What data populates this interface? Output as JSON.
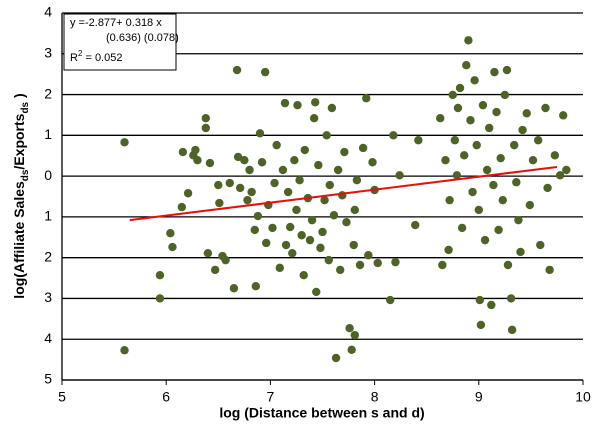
{
  "chart_data": {
    "type": "scatter",
    "xlabel": "log (Distance between s and d)",
    "ylabel_parts": [
      "log(Affiliate Sales",
      "ds",
      "/Exports",
      "ds",
      " )"
    ],
    "annotation": {
      "lines": [
        "y =-2.877+ 0.318 x",
        "(0.636) (0.078)"
      ],
      "r2": [
        "R",
        "2",
        " = 0.052"
      ]
    },
    "xlim": [
      5,
      10
    ],
    "xticks": [
      5,
      6,
      7,
      8,
      9,
      10
    ],
    "ylim": [
      -5,
      4
    ],
    "yticks": [
      4,
      3,
      2,
      1,
      0,
      {
        "value": -1,
        "label": "1"
      },
      {
        "value": -2,
        "label": "2"
      },
      {
        "value": -3,
        "label": "3"
      },
      {
        "value": -4,
        "label": "4"
      },
      {
        "value": -5,
        "label": "5"
      }
    ],
    "grid": true,
    "color": "#4f6228",
    "x": [
      5.6,
      5.6,
      5.94,
      5.94,
      6.04,
      6.06,
      6.15,
      6.16,
      6.21,
      6.26,
      6.28,
      6.3,
      6.38,
      6.38,
      6.4,
      6.42,
      6.47,
      6.51,
      6.5,
      6.54,
      6.57,
      6.61,
      6.65,
      6.68,
      6.69,
      6.71,
      6.75,
      6.78,
      6.8,
      6.82,
      6.85,
      6.86,
      6.88,
      6.9,
      6.92,
      6.95,
      6.96,
      6.98,
      7.02,
      7.04,
      7.06,
      7.09,
      7.12,
      7.14,
      7.15,
      7.17,
      7.19,
      7.21,
      7.23,
      7.25,
      7.26,
      7.28,
      7.3,
      7.32,
      7.33,
      7.36,
      7.38,
      7.4,
      7.42,
      7.43,
      7.44,
      7.46,
      7.48,
      7.5,
      7.52,
      7.54,
      7.56,
      7.57,
      7.59,
      7.61,
      7.63,
      7.65,
      7.67,
      7.69,
      7.71,
      7.73,
      7.76,
      7.78,
      7.81,
      7.8,
      7.81,
      7.83,
      7.86,
      7.89,
      7.92,
      7.94,
      7.98,
      8.0,
      8.03,
      8.15,
      8.18,
      8.2,
      8.24,
      8.39,
      8.42,
      8.63,
      8.65,
      8.68,
      8.71,
      8.72,
      8.75,
      8.77,
      8.79,
      8.8,
      8.82,
      8.84,
      8.86,
      8.88,
      8.9,
      8.92,
      8.94,
      8.96,
      8.98,
      9.0,
      9.01,
      9.02,
      9.04,
      9.06,
      9.08,
      9.1,
      9.12,
      9.14,
      9.15,
      9.17,
      9.19,
      9.21,
      9.23,
      9.25,
      9.27,
      9.28,
      9.31,
      9.32,
      9.34,
      9.36,
      9.38,
      9.4,
      9.42,
      9.46,
      9.49,
      9.52,
      9.57,
      9.59,
      9.64,
      9.66,
      9.68,
      9.73,
      9.78,
      9.81,
      9.84
    ],
    "values": [
      0.83,
      -4.27,
      -2.43,
      -3.0,
      -1.4,
      -1.74,
      -0.76,
      0.59,
      -0.42,
      0.51,
      0.64,
      0.39,
      1.42,
      1.18,
      -1.89,
      0.32,
      -2.3,
      -0.66,
      -0.22,
      -1.96,
      -2.06,
      -0.17,
      -2.75,
      2.6,
      0.47,
      -0.29,
      0.39,
      -0.59,
      0.15,
      -0.39,
      -1.32,
      -2.7,
      -0.98,
      1.05,
      0.34,
      2.55,
      -1.64,
      -0.71,
      -1.27,
      -0.17,
      0.76,
      -2.25,
      0.15,
      1.79,
      -1.69,
      -0.39,
      -1.25,
      -1.89,
      0.39,
      -0.83,
      1.74,
      -0.1,
      -1.45,
      -2.43,
      0.64,
      -0.54,
      -1.57,
      -1.08,
      1.42,
      1.81,
      -2.84,
      0.27,
      -1.76,
      -1.37,
      -0.59,
      1.0,
      -2.06,
      -0.22,
      1.67,
      -0.96,
      -4.46,
      0.15,
      -2.3,
      -0.47,
      0.59,
      -1.13,
      -3.73,
      -4.26,
      -3.9,
      -1.69,
      -0.83,
      -0.1,
      -2.18,
      0.69,
      1.91,
      -1.94,
      0.34,
      -0.34,
      -2.13,
      -3.04,
      1.0,
      -2.11,
      0.02,
      -1.2,
      0.88,
      1.42,
      -2.18,
      0.39,
      -1.81,
      -0.59,
      1.99,
      0.88,
      0.02,
      1.67,
      2.16,
      -1.27,
      0.51,
      2.72,
      3.33,
      1.37,
      -0.39,
      2.35,
      0.76,
      -0.83,
      -3.04,
      -3.65,
      1.74,
      -1.57,
      0.15,
      1.18,
      -3.16,
      -0.22,
      2.55,
      1.57,
      -1.32,
      0.44,
      -0.59,
      1.99,
      2.6,
      -2.18,
      -3.0,
      -3.77,
      0.76,
      -0.15,
      -1.08,
      -1.86,
      1.13,
      1.54,
      -0.71,
      0.39,
      0.88,
      -1.69,
      1.67,
      -0.29,
      -2.3,
      0.51,
      0.02,
      1.49,
      0.15
    ],
    "fit": {
      "x": [
        5.65,
        9.75
      ],
      "values": [
        -1.08,
        0.224
      ],
      "color": "#e3120b"
    }
  }
}
